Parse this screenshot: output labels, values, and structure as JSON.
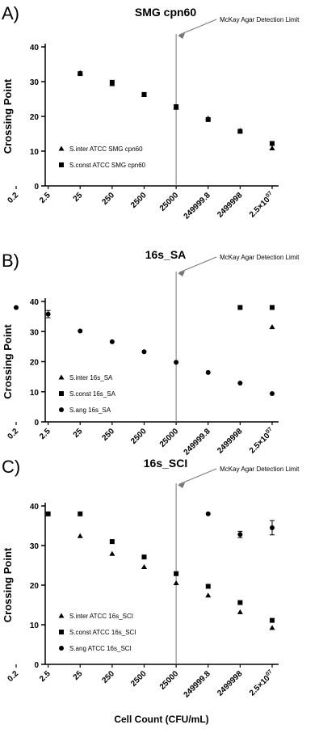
{
  "chart_data": [
    {
      "type": "scatter",
      "panel_label": "A)",
      "title": "SMG cpn60",
      "ylabel": "Crossing  Point",
      "xlabel": "",
      "ylim": [
        0,
        40
      ],
      "yticks": [
        "0",
        "10",
        "20",
        "30",
        "40"
      ],
      "categories": [
        "0.2",
        "2.5",
        "25",
        "250",
        "2500",
        "25000",
        "249999.8",
        "2499998",
        "2.5×10^07"
      ],
      "annotation": "McKay Agar Detection  Limit",
      "vline_category": "25000",
      "legend_position": "bottom-left",
      "series": [
        {
          "name": "S.inter ATCC SMG cpn60",
          "marker": "triangle",
          "values": [
            null,
            null,
            32.5,
            29.3,
            26.2,
            22.5,
            19.4,
            15.9,
            10.8
          ]
        },
        {
          "name": "S.const ATCC SMG cpn60",
          "marker": "square",
          "values": [
            null,
            null,
            32.3,
            29.8,
            26.3,
            22.8,
            19.1,
            15.7,
            12.2
          ]
        }
      ]
    },
    {
      "type": "scatter",
      "panel_label": "B)",
      "title": "16s_SA",
      "ylabel": "Crossing  Point",
      "xlabel": "",
      "ylim": [
        0,
        40
      ],
      "yticks": [
        "0",
        "10",
        "20",
        "30",
        "40"
      ],
      "categories": [
        "0.2",
        "2.5",
        "25",
        "250",
        "2500",
        "25000",
        "249999.8",
        "2499998",
        "2.5×10^07"
      ],
      "annotation": "McKay Agar Detection  Limit",
      "vline_category": "25000",
      "legend_position": "bottom-left",
      "series": [
        {
          "name": "S.inter 16s_SA",
          "marker": "triangle",
          "values": [
            null,
            null,
            null,
            null,
            null,
            null,
            null,
            null,
            31.5
          ]
        },
        {
          "name": "S.const 16s_SA",
          "marker": "square",
          "values": [
            null,
            null,
            null,
            null,
            null,
            null,
            null,
            38.0,
            38.0
          ]
        },
        {
          "name": "S.ang 16s_SA",
          "marker": "circle",
          "values": [
            38.0,
            35.8,
            30.2,
            26.6,
            23.3,
            19.8,
            16.4,
            12.9,
            9.4
          ]
        }
      ]
    },
    {
      "type": "scatter",
      "panel_label": "C)",
      "title": "16s_SCI",
      "ylabel": "Crossing  Point",
      "xlabel": "Cell  Count (CFU/mL)",
      "ylim": [
        0,
        40
      ],
      "yticks": [
        "0",
        "10",
        "20",
        "30",
        "40"
      ],
      "categories": [
        "0.2",
        "2.5",
        "25",
        "250",
        "2500",
        "25000",
        "249999.8",
        "2499998",
        "2.5×10^07"
      ],
      "annotation": "McKay Agar Detection  Limit",
      "vline_category": "25000",
      "legend_position": "bottom-left",
      "series": [
        {
          "name": "S.inter ATCC 16s_SCI",
          "marker": "triangle",
          "values": [
            null,
            null,
            32.4,
            27.9,
            24.6,
            20.5,
            17.4,
            13.2,
            9.2
          ]
        },
        {
          "name": "S.const ATCC 16s_SCI",
          "marker": "square",
          "values": [
            null,
            38.0,
            38.0,
            31.0,
            27.1,
            22.9,
            19.7,
            15.6,
            11.1
          ]
        },
        {
          "name": "S.ang ATCC 16s_SCI",
          "marker": "circle",
          "values": [
            null,
            null,
            null,
            null,
            null,
            null,
            38.0,
            32.8,
            34.5
          ]
        }
      ]
    }
  ]
}
